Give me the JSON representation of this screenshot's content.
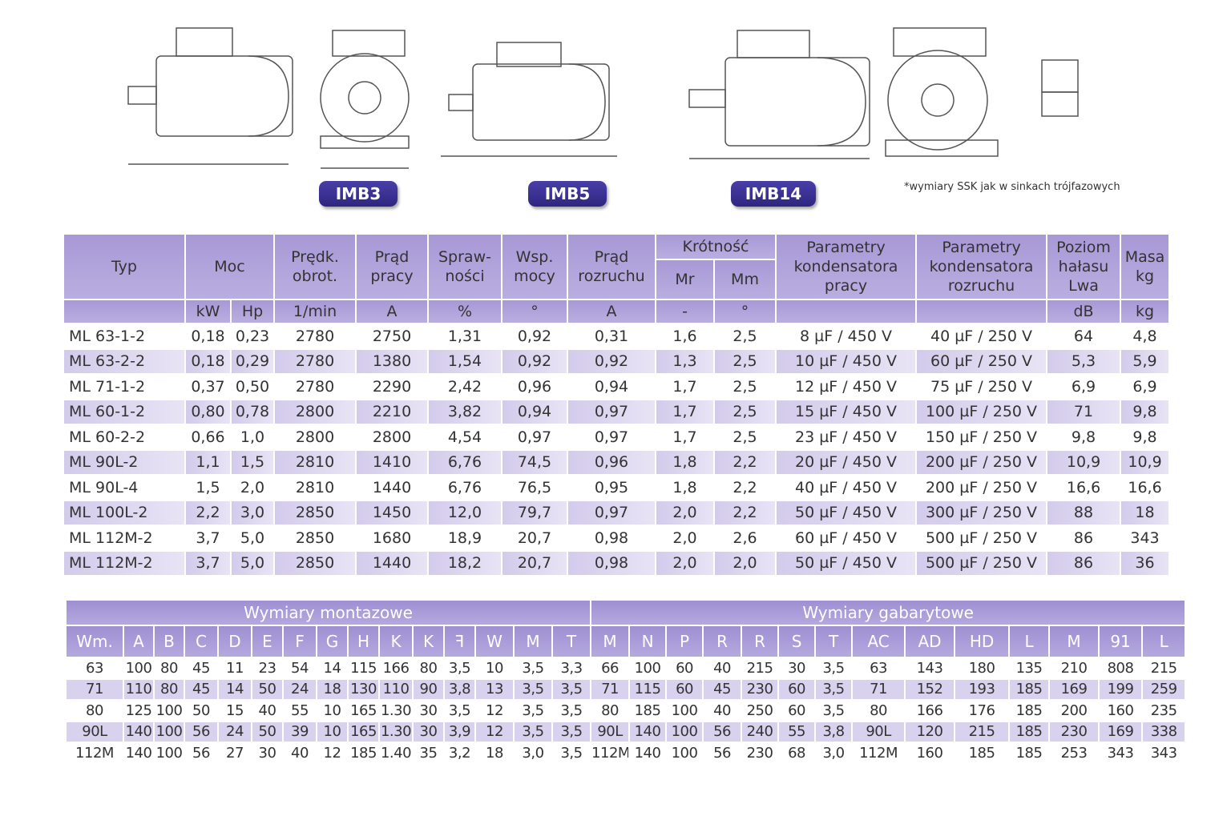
{
  "figures": {
    "labels": [
      "IMB3",
      "IMB5",
      "IMB14"
    ],
    "note": "*wymiary SSK jak w sinkach trójfazowych"
  },
  "table1": {
    "header": {
      "typ": "Typ",
      "moc": "Moc",
      "predkosc": "Prędk. obrot.",
      "prad_pracy": "Prąd pracy",
      "sprawnosc": "Spraw-ności",
      "wsp_mocy": "Wsp. mocy",
      "prad_rozruchu": "Prąd rozruchu",
      "krotnosc": "Krótność",
      "mr": "Mr",
      "mm": "Mm",
      "kond_pracy": "Parametry kondensatora pracy",
      "kond_rozruchu": "Parametry kondensatora rozruchu",
      "halas": "Poziom hałasu Lwa",
      "masa": "Masa kg"
    },
    "units": [
      "kW",
      "Hp",
      "1/min",
      "A",
      "%",
      "°",
      "A",
      "-",
      "°",
      "dB",
      "kg"
    ],
    "rows": [
      [
        "ML 63-1-2",
        "0,18",
        "0,23",
        "2780",
        "2750",
        "1,31",
        "0,92",
        "0,31",
        "1,6",
        "2,5",
        "8 µF / 450 V",
        "40 µF / 250 V",
        "64",
        "4,8"
      ],
      [
        "ML 63-2-2",
        "0,18",
        "0,29",
        "2780",
        "1380",
        "1,54",
        "0,92",
        "0,92",
        "1,3",
        "2,5",
        "10 µF / 450 V",
        "60 µF / 250 V",
        "5,3",
        "5,9"
      ],
      [
        "ML 71-1-2",
        "0,37",
        "0,50",
        "2780",
        "2290",
        "2,42",
        "0,96",
        "0,94",
        "1,7",
        "2,5",
        "12 µF / 450 V",
        "75 µF / 250 V",
        "6,9",
        "6,9"
      ],
      [
        "ML 60-1-2",
        "0,80",
        "0,78",
        "2800",
        "2210",
        "3,82",
        "0,94",
        "0,97",
        "1,7",
        "2,5",
        "15 µF / 450 V",
        "100 µF / 250 V",
        "71",
        "9,8"
      ],
      [
        "ML 60-2-2",
        "0,66",
        "1,0",
        "2800",
        "2800",
        "4,54",
        "0,97",
        "0,97",
        "1,7",
        "2,5",
        "23 µF / 450 V",
        "150 µF / 250 V",
        "9,8",
        "9,8"
      ],
      [
        "ML 90L-2",
        "1,1",
        "1,5",
        "2810",
        "1410",
        "6,76",
        "74,5",
        "0,96",
        "1,8",
        "2,2",
        "20 µF / 450 V",
        "200 µF / 250 V",
        "10,9",
        "10,9"
      ],
      [
        "ML 90L-4",
        "1,5",
        "2,0",
        "2810",
        "1440",
        "6,76",
        "76,5",
        "0,95",
        "1,8",
        "2,2",
        "40 µF / 450 V",
        "200 µF / 250 V",
        "16,6",
        "16,6"
      ],
      [
        "ML 100L-2",
        "2,2",
        "3,0",
        "2850",
        "1450",
        "12,0",
        "79,7",
        "0,97",
        "2,0",
        "2,2",
        "50 µF / 450 V",
        "300 µF / 250 V",
        "88",
        "18"
      ],
      [
        "ML 112M-2",
        "3,7",
        "5,0",
        "2850",
        "1680",
        "18,9",
        "20,7",
        "0,98",
        "2,0",
        "2,6",
        "60 µF / 450 V",
        "500 µF / 250 V",
        "86",
        "343"
      ],
      [
        "ML 112M-2",
        "3,7",
        "5,0",
        "2850",
        "1440",
        "18,2",
        "20,7",
        "0,98",
        "2,0",
        "2,0",
        "50 µF / 450 V",
        "500 µF / 250 V",
        "86",
        "36"
      ]
    ]
  },
  "table2": {
    "groups": [
      "Wymiary montazowe",
      "Wymiary gabarytowe"
    ],
    "columns": [
      "Wm.",
      "A",
      "B",
      "C",
      "D",
      "E",
      "F",
      "G",
      "H",
      "K",
      "K",
      "ꟻ",
      "W",
      "M",
      "T",
      "M",
      "N",
      "P",
      "R",
      "R",
      "S",
      "T",
      "AC",
      "AD",
      "HD",
      "L",
      "M",
      "91",
      "L"
    ],
    "rows": [
      [
        "63",
        "100",
        "80",
        "45",
        "11",
        "23",
        "54",
        "14",
        "115",
        "166",
        "80",
        "3,5",
        "10",
        "3,5",
        "3,3",
        "66",
        "100",
        "60",
        "40",
        "215",
        "30",
        "3,5",
        "63",
        "143",
        "180",
        "135",
        "210",
        "808",
        "215"
      ],
      [
        "71",
        "110",
        "80",
        "45",
        "14",
        "50",
        "24",
        "18",
        "130",
        "110",
        "90",
        "3,8",
        "13",
        "3,5",
        "3,5",
        "71",
        "115",
        "60",
        "45",
        "230",
        "60",
        "3,5",
        "71",
        "152",
        "193",
        "185",
        "169",
        "199",
        "259"
      ],
      [
        "80",
        "125",
        "100",
        "50",
        "15",
        "40",
        "55",
        "10",
        "165",
        "1.30",
        "30",
        "3,5",
        "12",
        "3,5",
        "3,5",
        "80",
        "185",
        "100",
        "40",
        "250",
        "60",
        "3,5",
        "80",
        "166",
        "176",
        "185",
        "200",
        "160",
        "235"
      ],
      [
        "90L",
        "140",
        "100",
        "56",
        "24",
        "50",
        "39",
        "10",
        "165",
        "1.30",
        "30",
        "3,9",
        "12",
        "3,5",
        "3,5",
        "90L",
        "140",
        "100",
        "56",
        "240",
        "55",
        "3,8",
        "90L",
        "120",
        "215",
        "185",
        "230",
        "169",
        "338"
      ],
      [
        "112M",
        "140",
        "100",
        "56",
        "27",
        "30",
        "40",
        "12",
        "185",
        "1.40",
        "35",
        "3,2",
        "18",
        "3,0",
        "3,5",
        "112M",
        "140",
        "100",
        "56",
        "230",
        "68",
        "3,0",
        "112M",
        "160",
        "185",
        "185",
        "253",
        "343",
        "343"
      ]
    ]
  }
}
